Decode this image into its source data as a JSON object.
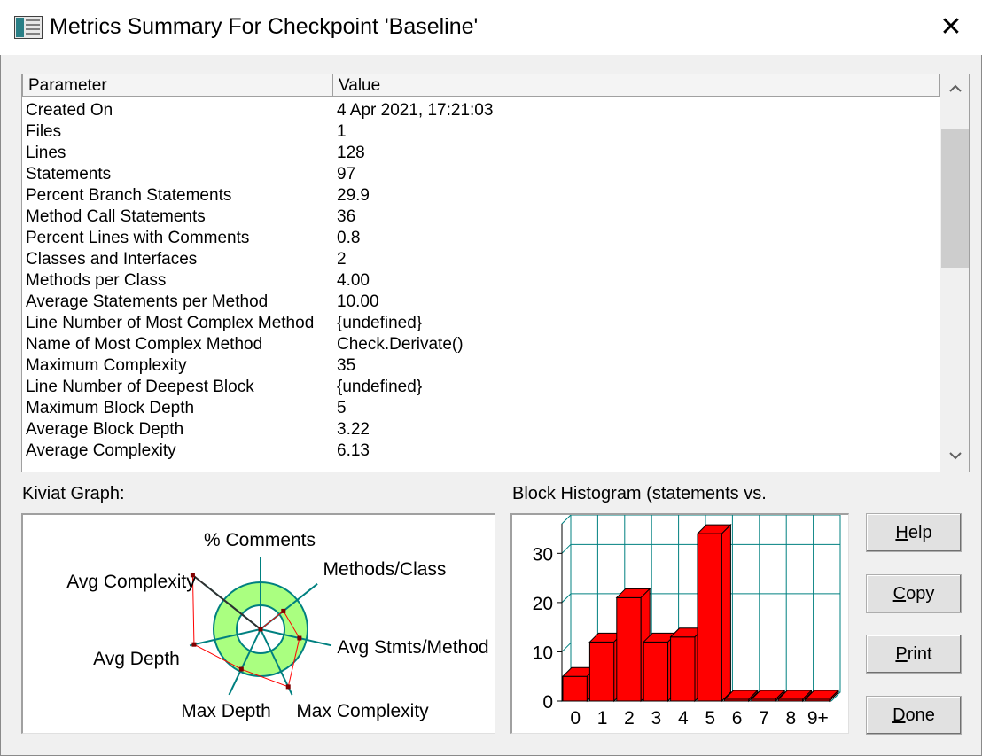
{
  "window": {
    "title": "Metrics Summary For Checkpoint 'Baseline'",
    "close_symbol": "✕"
  },
  "table": {
    "columns": [
      "Parameter",
      "Value"
    ],
    "rows": [
      [
        "Created On",
        "4 Apr 2021, 17:21:03"
      ],
      [
        "Files",
        "1"
      ],
      [
        "Lines",
        "128"
      ],
      [
        "Statements",
        "97"
      ],
      [
        "Percent Branch Statements",
        "29.9"
      ],
      [
        "Method Call Statements",
        "36"
      ],
      [
        "Percent Lines with Comments",
        "0.8"
      ],
      [
        "Classes and Interfaces",
        "2"
      ],
      [
        "Methods per Class",
        "4.00"
      ],
      [
        "Average Statements per Method",
        "10.00"
      ],
      [
        "Line Number of Most Complex Method",
        "{undefined}"
      ],
      [
        "Name of Most Complex Method",
        "Check.Derivate()"
      ],
      [
        "Maximum Complexity",
        "35"
      ],
      [
        "Line Number of Deepest Block",
        "{undefined}"
      ],
      [
        "Maximum Block Depth",
        "5"
      ],
      [
        "Average Block Depth",
        "3.22"
      ],
      [
        "Average Complexity",
        "6.13"
      ]
    ],
    "scroll_up_icon": "chevron-up-icon",
    "scroll_down_icon": "chevron-down-icon"
  },
  "kiviat": {
    "label": "Kiviat Graph:",
    "axes": [
      "% Comments",
      "Methods/Class",
      "Avg Stmts/Method",
      "Max Complexity",
      "Max Depth",
      "Avg Depth",
      "Avg Complexity"
    ],
    "ring_color": "#aaff80",
    "axis_color": "#008080",
    "polygon_color": "#ff0000"
  },
  "histogram": {
    "label": "Block Histogram (statements vs.",
    "bar_color": "#ff0000",
    "grid_color": "#008080"
  },
  "chart_data": {
    "type": "bar",
    "categories": [
      "0",
      "1",
      "2",
      "3",
      "4",
      "5",
      "6",
      "7",
      "8",
      "9+"
    ],
    "values": [
      5,
      12,
      21,
      12,
      13,
      34,
      0,
      0,
      0,
      0
    ],
    "yticks": [
      "0",
      "10",
      "20",
      "30"
    ],
    "ylim": [
      0,
      36
    ],
    "grid": true
  },
  "buttons": {
    "help": {
      "label": "Help",
      "mnemonic": "H",
      "rest": "elp"
    },
    "copy": {
      "label": "Copy",
      "mnemonic": "C",
      "rest": "opy"
    },
    "print": {
      "label": "Print",
      "mnemonic": "P",
      "rest": "rint"
    },
    "done": {
      "label": "Done",
      "mnemonic": "D",
      "rest": "one"
    }
  }
}
